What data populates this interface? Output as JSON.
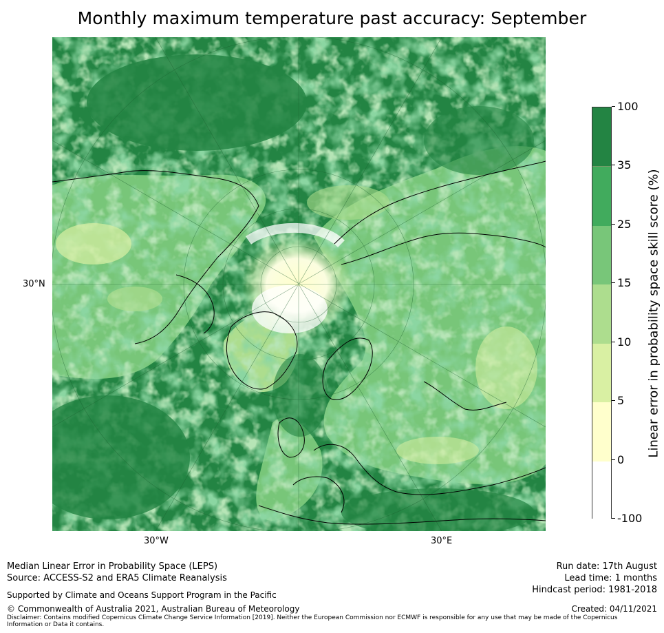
{
  "title": "Monthly maximum temperature past accuracy: September",
  "map": {
    "graticule_labels": {
      "latitude": "30°N",
      "longitude_west": "30°W",
      "longitude_east": "30°E"
    }
  },
  "colorbar": {
    "label": "Linear error in probability space skill score (%)",
    "ticks": [
      "-100",
      "0",
      "5",
      "10",
      "15",
      "25",
      "35",
      "100"
    ],
    "bins": [
      {
        "range": "-100 to 0",
        "color": "#ffffff"
      },
      {
        "range": "0 to 5",
        "color": "#ffffcc"
      },
      {
        "range": "5 to 10",
        "color": "#d9f0a3"
      },
      {
        "range": "10 to 15",
        "color": "#addd8e"
      },
      {
        "range": "15 to 25",
        "color": "#78c679"
      },
      {
        "range": "25 to 35",
        "color": "#41ab5d"
      },
      {
        "range": "35 to 100",
        "color": "#238443"
      }
    ]
  },
  "footer": {
    "method": "Median Linear Error in Probability Space (LEPS)",
    "source": "Source: ACCESS-S2 and ERA5 Climate Reanalysis",
    "supported": "Supported by Climate and Oceans Support Program in the Pacific",
    "copyright": "© Commonwealth of Australia 2021, Australian Bureau of Meteorology",
    "disclaimer": "Disclaimer: Contains modified Copernicus Climate Change Service Information [2019]. Neither the European Commission nor ECMWF is responsible for any use that may be made of the Copernicus Information or Data it contains.",
    "run_date": "Run date: 17th August",
    "lead_time": "Lead time: 1 months",
    "hindcast": "Hindcast period: 1981-2018",
    "created": "Created: 04/11/2021"
  }
}
